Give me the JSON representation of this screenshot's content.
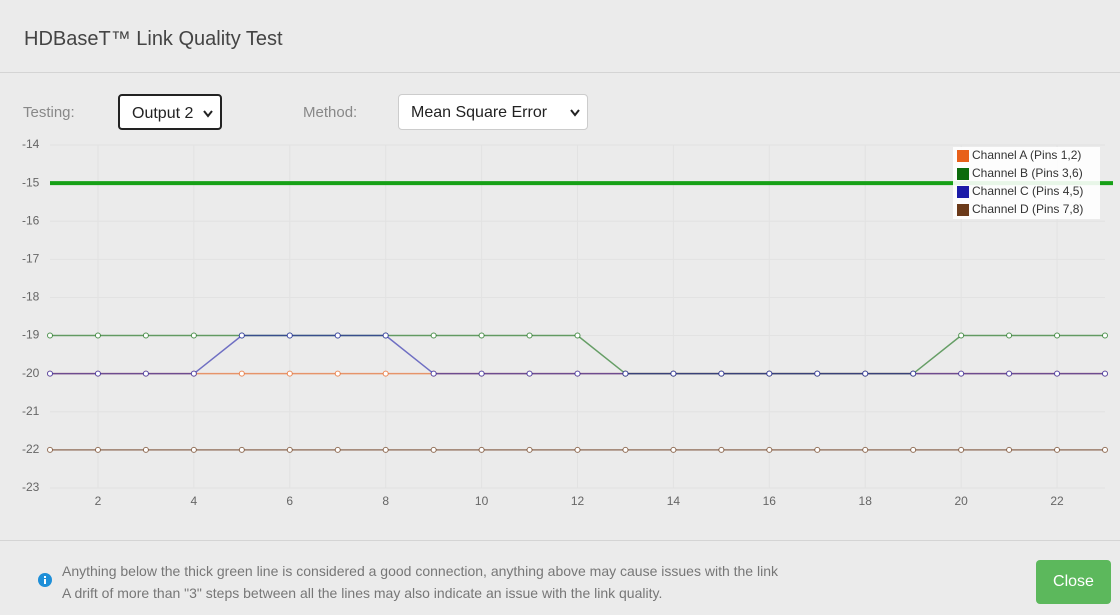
{
  "header": {
    "title": "HDBaseT™ Link Quality Test"
  },
  "controls": {
    "testing_label": "Testing:",
    "testing_value": "Output 2",
    "method_label": "Method:",
    "method_value": "Mean Square Error"
  },
  "chart_data": {
    "type": "line",
    "x": [
      1,
      2,
      3,
      4,
      5,
      6,
      7,
      8,
      9,
      10,
      11,
      12,
      13,
      14,
      15,
      16,
      17,
      18,
      19,
      20,
      21,
      22,
      23
    ],
    "xlim": [
      1,
      23
    ],
    "xticks": [
      2,
      4,
      6,
      8,
      10,
      12,
      14,
      16,
      18,
      20,
      22
    ],
    "ylim": [
      -23,
      -14
    ],
    "yticks": [
      -14,
      -15,
      -16,
      -17,
      -18,
      -19,
      -20,
      -21,
      -22,
      -23
    ],
    "grid": true,
    "legend": "top-right",
    "threshold": {
      "value": -15,
      "color": "#16a016"
    },
    "series": [
      {
        "name": "Channel A (Pins 1,2)",
        "color": "#e8601a",
        "values": [
          -20,
          -20,
          -20,
          -20,
          -20,
          -20,
          -20,
          -20,
          -20,
          -20,
          -20,
          -20,
          -20,
          -20,
          -20,
          -20,
          -20,
          -20,
          -20,
          -20,
          -20,
          -20,
          -20
        ]
      },
      {
        "name": "Channel B (Pins 3,6)",
        "color": "#0d6b0d",
        "values": [
          -19,
          -19,
          -19,
          -19,
          -19,
          -19,
          -19,
          -19,
          -19,
          -19,
          -19,
          -19,
          -20,
          -20,
          -20,
          -20,
          -20,
          -20,
          -20,
          -19,
          -19,
          -19,
          -19
        ]
      },
      {
        "name": "Channel C (Pins 4,5)",
        "color": "#1c1ca8",
        "values": [
          -20,
          -20,
          -20,
          -20,
          -19,
          -19,
          -19,
          -19,
          -20,
          -20,
          -20,
          -20,
          -20,
          -20,
          -20,
          -20,
          -20,
          -20,
          -20,
          -20,
          -20,
          -20,
          -20
        ]
      },
      {
        "name": "Channel D (Pins 7,8)",
        "color": "#6b3a1a",
        "values": [
          -22,
          -22,
          -22,
          -22,
          -22,
          -22,
          -22,
          -22,
          -22,
          -22,
          -22,
          -22,
          -22,
          -22,
          -22,
          -22,
          -22,
          -22,
          -22,
          -22,
          -22,
          -22,
          -22
        ]
      }
    ]
  },
  "footer": {
    "line1": "Anything below the thick green line is considered a good connection, anything above may cause issues with the link",
    "line2": "A drift of more than \"3\" steps between all the lines may also indicate an issue with the link quality.",
    "button": "Close"
  }
}
